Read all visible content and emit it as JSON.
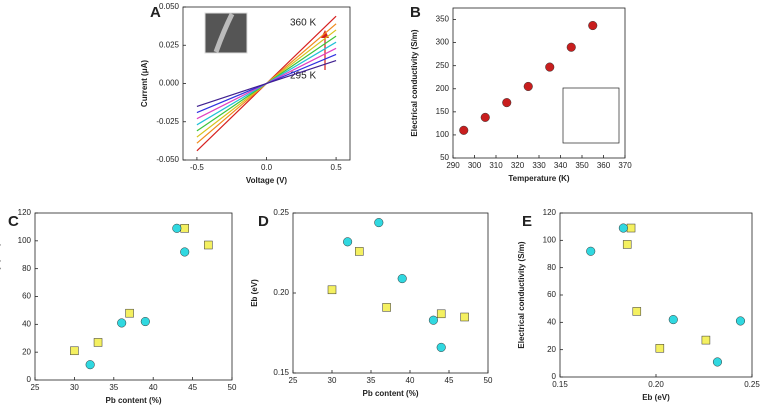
{
  "chart_data": [
    {
      "type": "line",
      "panel_label": "A",
      "x_label": "Voltage (V)",
      "y_label": "Current (μA)",
      "annotations": [
        "360 K",
        "295 K"
      ],
      "x": [
        -0.5,
        0.5
      ],
      "series": [
        {
          "color": "#d62020",
          "values": [
            -0.044,
            0.044
          ]
        },
        {
          "color": "#f08a1c",
          "values": [
            -0.039,
            0.039
          ]
        },
        {
          "color": "#d8c21a",
          "values": [
            -0.035,
            0.035
          ]
        },
        {
          "color": "#3cc43c",
          "values": [
            -0.031,
            0.031
          ]
        },
        {
          "color": "#22c0d8",
          "values": [
            -0.027,
            0.027
          ]
        },
        {
          "color": "#e040c0",
          "values": [
            -0.023,
            0.023
          ]
        },
        {
          "color": "#3030e0",
          "values": [
            -0.019,
            0.019
          ]
        },
        {
          "color": "#402090",
          "values": [
            -0.015,
            0.015
          ]
        }
      ],
      "xlim": [
        -0.6,
        0.6
      ],
      "xticks": [
        -0.5,
        {
          "value": 0,
          "label": "0.0"
        },
        0.5
      ],
      "ylim": [
        -0.05,
        0.05
      ],
      "yticks": [
        {
          "value": -0.05,
          "label": "-0.050"
        },
        {
          "value": -0.025,
          "label": "-0.025"
        },
        {
          "value": 0,
          "label": "0.000"
        },
        {
          "value": 0.025,
          "label": "0.025"
        },
        {
          "value": 0.05,
          "label": "0.050"
        }
      ]
    },
    {
      "type": "scatter",
      "panel_label": "B",
      "x_label": "Temperature (K)",
      "y_label": "Electrical conductivity (S/m)",
      "series": [
        {
          "color": "#c81e1e",
          "marker": "circle",
          "x": [
            295,
            305,
            315,
            325,
            335,
            345,
            355
          ],
          "values": [
            110,
            138,
            170,
            205,
            247,
            290,
            337
          ]
        }
      ],
      "xlim": [
        290,
        370
      ],
      "xticks": [
        290,
        300,
        310,
        320,
        330,
        340,
        350,
        360,
        370
      ],
      "ylim": [
        50,
        375
      ],
      "yticks": [
        50,
        100,
        150,
        200,
        250,
        300,
        350
      ]
    },
    {
      "type": "scatter",
      "panel_label": "C",
      "x_label": "Pb content (%)",
      "y_label": "Electrical conductivity (S/m)",
      "series": [
        {
          "color": "#f4f060",
          "marker": "square",
          "x": [
            30,
            33,
            37,
            44,
            47
          ],
          "values": [
            21,
            27,
            48,
            109,
            97
          ]
        },
        {
          "color": "#30d8e0",
          "marker": "circle",
          "x": [
            32,
            36,
            39,
            43,
            44
          ],
          "values": [
            11,
            41,
            42,
            109,
            92
          ]
        }
      ],
      "xlim": [
        25,
        50
      ],
      "xticks": [
        25,
        30,
        35,
        40,
        45,
        50
      ],
      "ylim": [
        0,
        120
      ],
      "yticks": [
        0,
        20,
        40,
        60,
        80,
        100,
        120
      ]
    },
    {
      "type": "scatter",
      "panel_label": "D",
      "x_label": "Pb content (%)",
      "y_label": "Eb (eV)",
      "series": [
        {
          "color": "#f4f060",
          "marker": "square",
          "x": [
            30,
            33.5,
            37,
            44,
            47
          ],
          "values": [
            0.202,
            0.226,
            0.191,
            0.187,
            0.185
          ]
        },
        {
          "color": "#30d8e0",
          "marker": "circle",
          "x": [
            32,
            36,
            39,
            43,
            44
          ],
          "values": [
            0.232,
            0.244,
            0.209,
            0.183,
            0.166
          ]
        }
      ],
      "xlim": [
        25,
        50
      ],
      "xticks": [
        25,
        30,
        35,
        40,
        45,
        50
      ],
      "ylim": [
        0.15,
        0.25
      ],
      "yticks": [
        0.15,
        {
          "value": 0.2,
          "label": "0.20"
        },
        0.25
      ]
    },
    {
      "type": "scatter",
      "panel_label": "E",
      "x_label": "Eb (eV)",
      "y_label": "Electrical conductivity (S/m)",
      "series": [
        {
          "color": "#f4f060",
          "marker": "square",
          "x": [
            0.187,
            0.185,
            0.19,
            0.202,
            0.226
          ],
          "values": [
            109,
            97,
            48,
            21,
            27
          ]
        },
        {
          "color": "#30d8e0",
          "marker": "circle",
          "x": [
            0.166,
            0.183,
            0.209,
            0.232,
            0.244
          ],
          "values": [
            92,
            109,
            42,
            11,
            41
          ]
        }
      ],
      "xlim": [
        0.15,
        0.25
      ],
      "xticks": [
        0.15,
        {
          "value": 0.2,
          "label": "0.20"
        },
        0.25
      ],
      "ylim": [
        0,
        120
      ],
      "yticks": [
        0,
        20,
        40,
        60,
        80,
        100,
        120
      ]
    }
  ]
}
